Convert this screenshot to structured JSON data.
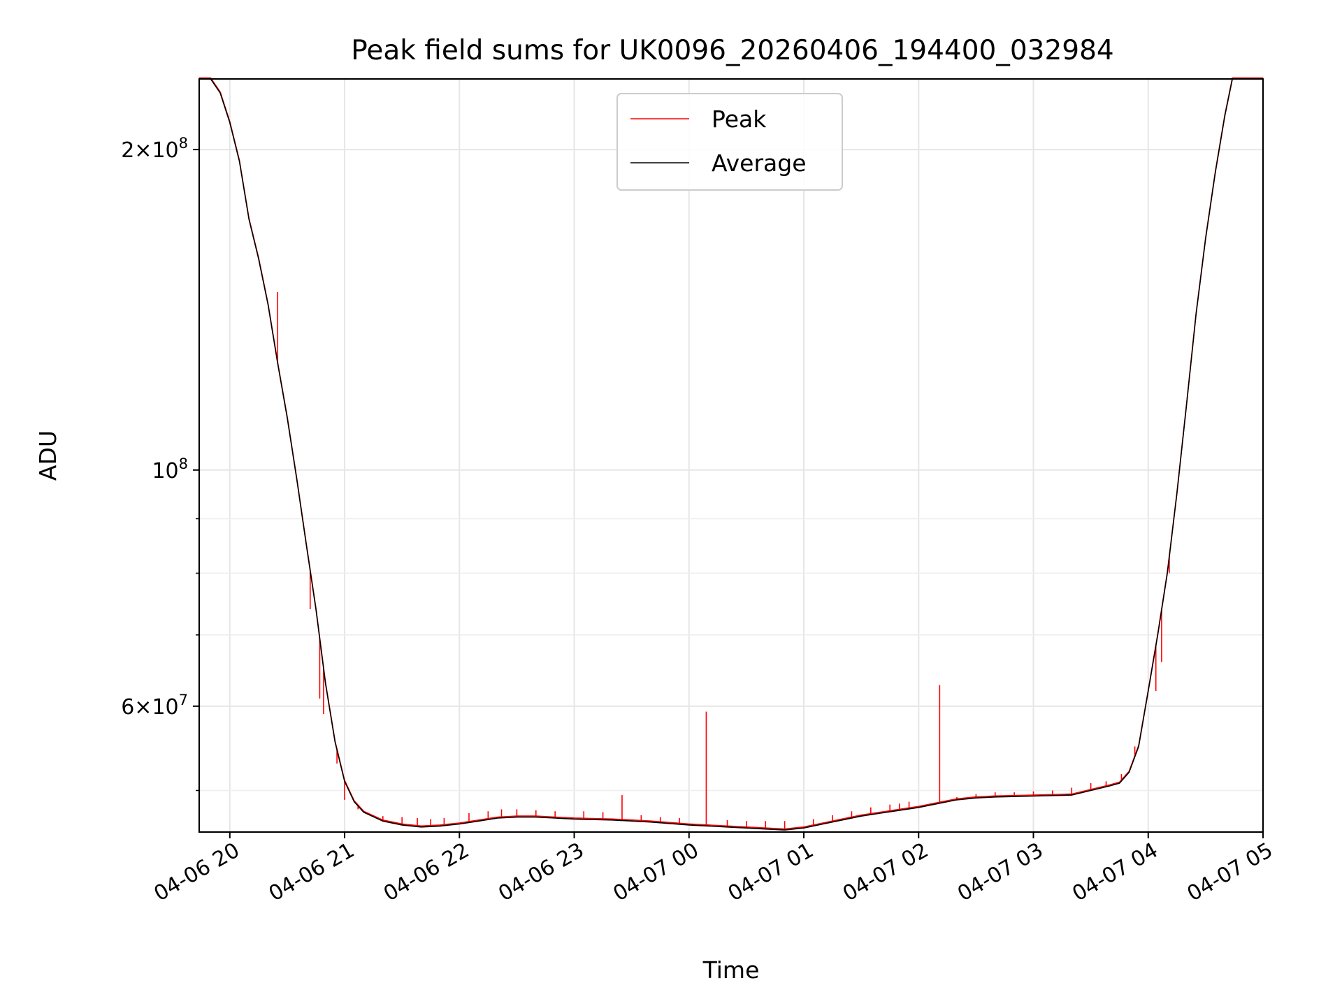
{
  "chart_data": {
    "type": "line",
    "title": "Peak field sums for UK0096_20260406_194400_032984",
    "xlabel": "Time",
    "ylabel": "ADU",
    "y_scale": "log",
    "grid": true,
    "legend_position": "top-center",
    "xlim": [
      "2026-04-06 19:44",
      "2026-04-07 05:00"
    ],
    "ylim": [
      45700000,
      233000000
    ],
    "x_ticks": [
      "04-06 20",
      "04-06 21",
      "04-06 22",
      "04-06 23",
      "04-07 00",
      "04-07 01",
      "04-07 02",
      "04-07 03",
      "04-07 04",
      "04-07 05"
    ],
    "y_major_ticks": [
      {
        "value": 200000000,
        "mantissa": "2",
        "exponent": "8"
      },
      {
        "value": 100000000,
        "mantissa": "",
        "exponent": "8"
      },
      {
        "value": 60000000,
        "mantissa": "6",
        "exponent": "7"
      }
    ],
    "y_minor_ticks": [
      50000000,
      70000000,
      80000000,
      90000000
    ],
    "series": [
      {
        "name": "Peak",
        "color": "#ff0000",
        "spikes": [
          [
            "2026-04-06 20:25",
            147000000
          ],
          [
            "2026-04-06 20:42",
            74000000
          ],
          [
            "2026-04-06 20:47",
            61000000
          ],
          [
            "2026-04-06 20:49",
            59000000
          ],
          [
            "2026-04-06 20:56",
            53000000
          ],
          [
            "2026-04-06 21:00",
            49000000
          ],
          [
            "2026-04-06 21:07",
            48000000
          ],
          [
            "2026-04-06 21:20",
            47300000
          ],
          [
            "2026-04-06 21:30",
            47200000
          ],
          [
            "2026-04-06 21:38",
            47100000
          ],
          [
            "2026-04-06 21:45",
            47000000
          ],
          [
            "2026-04-06 21:52",
            47100000
          ],
          [
            "2026-04-06 22:05",
            47600000
          ],
          [
            "2026-04-06 22:15",
            47800000
          ],
          [
            "2026-04-06 22:22",
            48000000
          ],
          [
            "2026-04-06 22:30",
            48000000
          ],
          [
            "2026-04-06 22:40",
            47900000
          ],
          [
            "2026-04-06 22:50",
            47800000
          ],
          [
            "2026-04-06 23:05",
            47800000
          ],
          [
            "2026-04-06 23:15",
            47700000
          ],
          [
            "2026-04-06 23:25",
            49500000
          ],
          [
            "2026-04-06 23:35",
            47400000
          ],
          [
            "2026-04-06 23:45",
            47200000
          ],
          [
            "2026-04-06 23:55",
            47100000
          ],
          [
            "2026-04-07 00:09",
            59300000
          ],
          [
            "2026-04-07 00:20",
            46900000
          ],
          [
            "2026-04-07 00:30",
            46800000
          ],
          [
            "2026-04-07 00:40",
            46800000
          ],
          [
            "2026-04-07 00:50",
            46800000
          ],
          [
            "2026-04-07 01:05",
            47000000
          ],
          [
            "2026-04-07 01:15",
            47400000
          ],
          [
            "2026-04-07 01:25",
            47800000
          ],
          [
            "2026-04-07 01:35",
            48200000
          ],
          [
            "2026-04-07 01:45",
            48500000
          ],
          [
            "2026-04-07 01:50",
            48600000
          ],
          [
            "2026-04-07 01:55",
            48800000
          ],
          [
            "2026-04-07 02:11",
            62800000
          ],
          [
            "2026-04-07 02:20",
            49300000
          ],
          [
            "2026-04-07 02:30",
            49600000
          ],
          [
            "2026-04-07 02:40",
            49800000
          ],
          [
            "2026-04-07 02:50",
            49800000
          ],
          [
            "2026-04-07 03:00",
            49900000
          ],
          [
            "2026-04-07 03:10",
            50000000
          ],
          [
            "2026-04-07 03:20",
            50300000
          ],
          [
            "2026-04-07 03:30",
            50800000
          ],
          [
            "2026-04-07 03:38",
            51000000
          ],
          [
            "2026-04-07 03:46",
            51800000
          ],
          [
            "2026-04-07 03:53",
            55000000
          ],
          [
            "2026-04-07 04:04",
            62000000
          ],
          [
            "2026-04-07 04:07",
            66000000
          ],
          [
            "2026-04-07 04:11",
            80000000
          ]
        ]
      },
      {
        "name": "Average",
        "color": "#000000",
        "points": [
          [
            "2026-04-06 19:44",
            233000000
          ],
          [
            "2026-04-06 19:50",
            233000000
          ],
          [
            "2026-04-06 19:55",
            226000000
          ],
          [
            "2026-04-06 20:00",
            212000000
          ],
          [
            "2026-04-06 20:05",
            195000000
          ],
          [
            "2026-04-06 20:10",
            172000000
          ],
          [
            "2026-04-06 20:15",
            158000000
          ],
          [
            "2026-04-06 20:20",
            143000000
          ],
          [
            "2026-04-06 20:25",
            126000000
          ],
          [
            "2026-04-06 20:30",
            112000000
          ],
          [
            "2026-04-06 20:35",
            98000000
          ],
          [
            "2026-04-06 20:40",
            85000000
          ],
          [
            "2026-04-06 20:45",
            74000000
          ],
          [
            "2026-04-06 20:50",
            63000000
          ],
          [
            "2026-04-06 20:55",
            55500000
          ],
          [
            "2026-04-06 21:00",
            51000000
          ],
          [
            "2026-04-06 21:05",
            48800000
          ],
          [
            "2026-04-06 21:10",
            47700000
          ],
          [
            "2026-04-06 21:20",
            46800000
          ],
          [
            "2026-04-06 21:30",
            46400000
          ],
          [
            "2026-04-06 21:40",
            46200000
          ],
          [
            "2026-04-06 21:50",
            46300000
          ],
          [
            "2026-04-06 22:00",
            46500000
          ],
          [
            "2026-04-06 22:10",
            46800000
          ],
          [
            "2026-04-06 22:20",
            47100000
          ],
          [
            "2026-04-06 22:30",
            47200000
          ],
          [
            "2026-04-06 22:40",
            47200000
          ],
          [
            "2026-04-06 22:50",
            47100000
          ],
          [
            "2026-04-06 23:00",
            47000000
          ],
          [
            "2026-04-06 23:20",
            46900000
          ],
          [
            "2026-04-06 23:40",
            46700000
          ],
          [
            "2026-04-07 00:00",
            46400000
          ],
          [
            "2026-04-07 00:20",
            46200000
          ],
          [
            "2026-04-07 00:40",
            46000000
          ],
          [
            "2026-04-07 00:50",
            45900000
          ],
          [
            "2026-04-07 01:00",
            46100000
          ],
          [
            "2026-04-07 01:10",
            46500000
          ],
          [
            "2026-04-07 01:20",
            46900000
          ],
          [
            "2026-04-07 01:30",
            47300000
          ],
          [
            "2026-04-07 01:40",
            47600000
          ],
          [
            "2026-04-07 01:50",
            47900000
          ],
          [
            "2026-04-07 02:00",
            48200000
          ],
          [
            "2026-04-07 02:10",
            48600000
          ],
          [
            "2026-04-07 02:20",
            49000000
          ],
          [
            "2026-04-07 02:30",
            49200000
          ],
          [
            "2026-04-07 02:40",
            49300000
          ],
          [
            "2026-04-07 03:00",
            49400000
          ],
          [
            "2026-04-07 03:20",
            49500000
          ],
          [
            "2026-04-07 03:30",
            50000000
          ],
          [
            "2026-04-07 03:40",
            50500000
          ],
          [
            "2026-04-07 03:45",
            50800000
          ],
          [
            "2026-04-07 03:50",
            52000000
          ],
          [
            "2026-04-07 03:55",
            55000000
          ],
          [
            "2026-04-07 04:00",
            62000000
          ],
          [
            "2026-04-07 04:05",
            70000000
          ],
          [
            "2026-04-07 04:10",
            80000000
          ],
          [
            "2026-04-07 04:15",
            95000000
          ],
          [
            "2026-04-07 04:20",
            115000000
          ],
          [
            "2026-04-07 04:25",
            140000000
          ],
          [
            "2026-04-07 04:30",
            165000000
          ],
          [
            "2026-04-07 04:35",
            190000000
          ],
          [
            "2026-04-07 04:40",
            215000000
          ],
          [
            "2026-04-07 04:44",
            233000000
          ],
          [
            "2026-04-07 05:00",
            233000000
          ]
        ]
      }
    ]
  }
}
